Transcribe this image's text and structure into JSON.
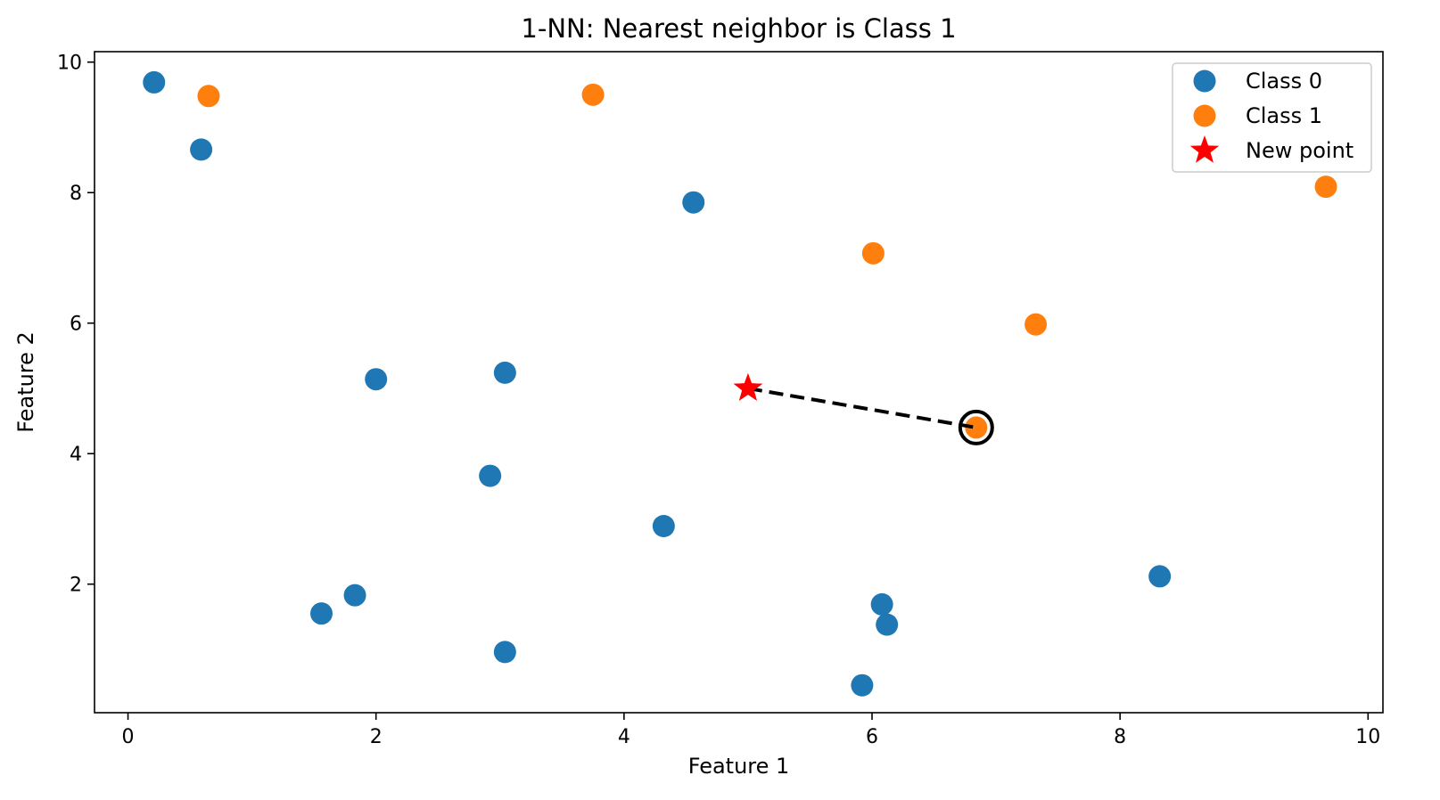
{
  "chart_data": {
    "type": "scatter",
    "title": "1-NN: Nearest neighbor is Class 1",
    "xlabel": "Feature 1",
    "ylabel": "Feature 2",
    "xlim": [
      -0.27,
      10.12
    ],
    "ylim": [
      0.03,
      10.16
    ],
    "xticks": [
      0,
      2,
      4,
      6,
      8,
      10
    ],
    "yticks": [
      2,
      4,
      6,
      8,
      10
    ],
    "grid": false,
    "legend_position": "top-right",
    "series": [
      {
        "name": "Class 0",
        "color": "#1f77b4",
        "marker": "circle",
        "points": [
          [
            0.21,
            9.69
          ],
          [
            0.59,
            8.66
          ],
          [
            4.56,
            7.85
          ],
          [
            2.0,
            5.14
          ],
          [
            3.04,
            5.24
          ],
          [
            2.92,
            3.66
          ],
          [
            4.32,
            2.89
          ],
          [
            1.56,
            1.55
          ],
          [
            1.83,
            1.83
          ],
          [
            3.04,
            0.96
          ],
          [
            6.08,
            1.69
          ],
          [
            6.12,
            1.38
          ],
          [
            5.92,
            0.45
          ],
          [
            8.32,
            2.12
          ]
        ]
      },
      {
        "name": "Class 1",
        "color": "#ff7f0e",
        "marker": "circle",
        "points": [
          [
            0.65,
            9.48
          ],
          [
            3.75,
            9.5
          ],
          [
            6.01,
            7.07
          ],
          [
            7.32,
            5.98
          ],
          [
            6.84,
            4.4
          ],
          [
            9.66,
            8.09
          ]
        ]
      },
      {
        "name": "New point",
        "color": "#ff0000",
        "marker": "star",
        "points": [
          [
            5.0,
            5.0
          ]
        ]
      }
    ],
    "nearest_neighbor": {
      "from": [
        5.0,
        5.0
      ],
      "to": [
        6.84,
        4.4
      ],
      "line_style": "dashed",
      "line_color": "#000000",
      "highlight": "ring"
    }
  }
}
